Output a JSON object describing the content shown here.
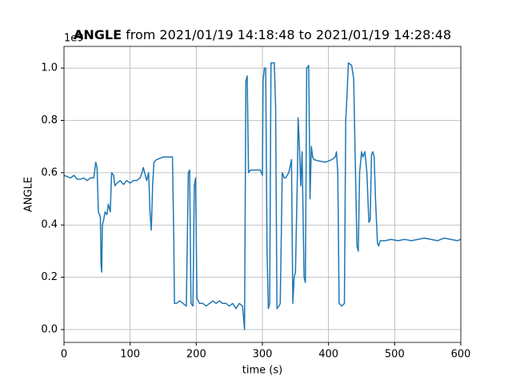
{
  "chart_data": {
    "type": "line",
    "title_bold": "ANGLE",
    "title": "from 2021/01/19 14:18:48 to 2021/01/19 14:28:48",
    "offset_label": "1e9",
    "x_label": "time (s)",
    "y_label": "ANGLE",
    "xlim": [
      0,
      600
    ],
    "xticks": [
      0,
      100,
      200,
      300,
      400,
      500,
      600
    ],
    "ylim": [
      -0.049,
      1.083
    ],
    "yticks": [
      {
        "value": 0,
        "label": "0.0"
      },
      0.2,
      0.4,
      0.6,
      0.8,
      {
        "value": 1,
        "label": "1.0"
      }
    ],
    "grid": true,
    "series": [
      {
        "color": "#1f77b4",
        "x": [
          0,
          5,
          10,
          15,
          20,
          25,
          30,
          35,
          40,
          45,
          48,
          50,
          52,
          55,
          56,
          57,
          58,
          60,
          62,
          65,
          67,
          70,
          72,
          75,
          77,
          80,
          85,
          90,
          95,
          100,
          105,
          110,
          115,
          118,
          120,
          125,
          128,
          130,
          132,
          134,
          136,
          140,
          145,
          150,
          155,
          160,
          164,
          166,
          167,
          170,
          175,
          180,
          185,
          188,
          190,
          192,
          195,
          197,
          199,
          201,
          205,
          210,
          215,
          220,
          225,
          230,
          235,
          240,
          245,
          250,
          255,
          260,
          265,
          270,
          273,
          275,
          277,
          279,
          282,
          290,
          297,
          300,
          301,
          303,
          305,
          307,
          309,
          311,
          313,
          315,
          318,
          320,
          322,
          325,
          327,
          330,
          333,
          335,
          340,
          344,
          346,
          348,
          350,
          353,
          354,
          356,
          358,
          360,
          361,
          363,
          365,
          367,
          370,
          372,
          374,
          376,
          378,
          385,
          395,
          405,
          410,
          412,
          414,
          416,
          420,
          424,
          426,
          428,
          430,
          435,
          438,
          440,
          443,
          445,
          447,
          450,
          452,
          455,
          458,
          461,
          463,
          465,
          467,
          469,
          471,
          474,
          476,
          478,
          485,
          495,
          505,
          515,
          525,
          535,
          545,
          555,
          565,
          575,
          585,
          595,
          600
        ],
        "values": [
          0.59,
          0.585,
          0.58,
          0.59,
          0.575,
          0.575,
          0.58,
          0.57,
          0.58,
          0.58,
          0.64,
          0.62,
          0.45,
          0.43,
          0.25,
          0.22,
          0.4,
          0.42,
          0.45,
          0.44,
          0.48,
          0.45,
          0.6,
          0.59,
          0.55,
          0.56,
          0.57,
          0.555,
          0.57,
          0.56,
          0.57,
          0.57,
          0.58,
          0.6,
          0.62,
          0.57,
          0.6,
          0.45,
          0.38,
          0.55,
          0.64,
          0.65,
          0.655,
          0.66,
          0.66,
          0.66,
          0.66,
          0.35,
          0.1,
          0.1,
          0.11,
          0.1,
          0.09,
          0.6,
          0.61,
          0.1,
          0.09,
          0.55,
          0.58,
          0.12,
          0.1,
          0.1,
          0.09,
          0.1,
          0.11,
          0.1,
          0.11,
          0.1,
          0.1,
          0.09,
          0.1,
          0.08,
          0.1,
          0.09,
          0.0,
          0.95,
          0.97,
          0.6,
          0.61,
          0.61,
          0.61,
          0.59,
          0.95,
          1.0,
          1.0,
          0.3,
          0.08,
          0.1,
          1.02,
          1.02,
          1.02,
          0.85,
          0.08,
          0.09,
          0.1,
          0.6,
          0.58,
          0.58,
          0.6,
          0.65,
          0.1,
          0.2,
          0.22,
          0.6,
          0.81,
          0.7,
          0.55,
          0.68,
          0.52,
          0.2,
          0.18,
          1.0,
          1.01,
          0.5,
          0.7,
          0.66,
          0.65,
          0.645,
          0.64,
          0.65,
          0.66,
          0.68,
          0.6,
          0.1,
          0.09,
          0.1,
          0.8,
          0.9,
          1.02,
          1.01,
          0.96,
          0.7,
          0.32,
          0.3,
          0.6,
          0.68,
          0.66,
          0.68,
          0.6,
          0.41,
          0.42,
          0.67,
          0.68,
          0.66,
          0.5,
          0.33,
          0.32,
          0.34,
          0.34,
          0.345,
          0.34,
          0.345,
          0.34,
          0.345,
          0.35,
          0.345,
          0.34,
          0.35,
          0.345,
          0.34,
          0.345
        ]
      }
    ]
  }
}
